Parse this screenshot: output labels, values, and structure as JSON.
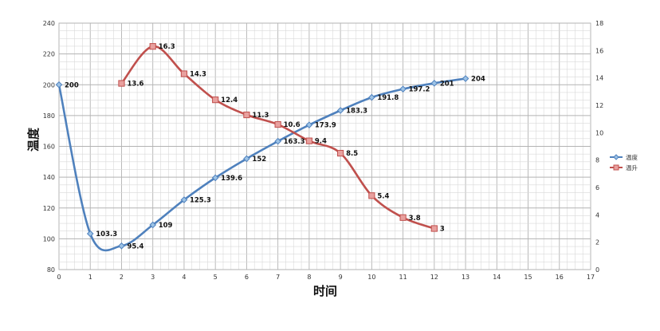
{
  "chart_data": {
    "type": "line",
    "x": [
      0,
      1,
      2,
      3,
      4,
      5,
      6,
      7,
      8,
      9,
      10,
      11,
      12,
      13
    ],
    "xlabel": "时间",
    "ylabel": "温度",
    "xlim": [
      0,
      17
    ],
    "ylim": [
      80,
      240
    ],
    "y2lim": [
      0,
      18
    ],
    "x_ticks": [
      "0",
      "1",
      "2",
      "3",
      "4",
      "5",
      "6",
      "7",
      "8",
      "9",
      "10",
      "11",
      "12",
      "13",
      "14",
      "15",
      "16",
      "17"
    ],
    "y_ticks": [
      "80",
      "100",
      "120",
      "140",
      "160",
      "180",
      "200",
      "220",
      "240"
    ],
    "y2_ticks": [
      "0",
      "2",
      "4",
      "6",
      "8",
      "10",
      "12",
      "14",
      "16",
      "18"
    ],
    "grid": true,
    "legend_position": "right",
    "series": [
      {
        "name": "温度",
        "axis": "left",
        "color": "#4f81bd",
        "marker": "diamond",
        "x": [
          0,
          1,
          2,
          3,
          4,
          5,
          6,
          7,
          8,
          9,
          10,
          11,
          12,
          13
        ],
        "values": [
          200,
          103.3,
          95.4,
          109,
          125.3,
          139.6,
          152,
          163.3,
          173.9,
          183.3,
          191.8,
          197.2,
          201,
          204
        ],
        "labels": [
          "200",
          "103.3",
          "95.4",
          "109",
          "125.3",
          "139.6",
          "152",
          "163.3",
          "173.9",
          "183.3",
          "191.8",
          "197.2",
          "201",
          "204"
        ]
      },
      {
        "name": "温升",
        "axis": "right",
        "color": "#c0504d",
        "marker": "square",
        "x": [
          2,
          3,
          4,
          5,
          6,
          7,
          8,
          9,
          10,
          11,
          12
        ],
        "values": [
          13.6,
          16.3,
          14.3,
          12.4,
          11.3,
          10.6,
          9.4,
          8.5,
          5.4,
          3.8,
          3
        ],
        "labels": [
          "13.6",
          "16.3",
          "14.3",
          "12.4",
          "11.3",
          "10.6",
          "9.4",
          "8.5",
          "5.4",
          "3.8",
          "3"
        ]
      }
    ]
  }
}
